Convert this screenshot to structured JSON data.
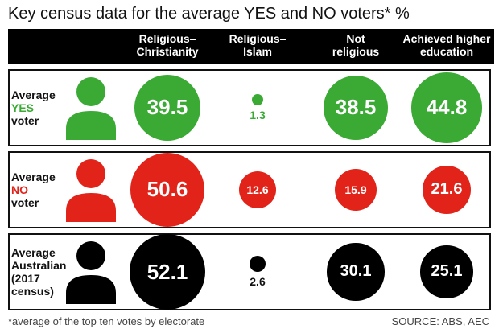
{
  "title": "Key census data for the average YES and NO voters* %",
  "footnote": "*average of the top ten votes by electorate",
  "source": "SOURCE: ABS, AEC",
  "colors": {
    "yes": "#3aaa35",
    "no": "#e2231a",
    "aus": "#000000"
  },
  "chart_data": {
    "type": "bubble-table",
    "columns": [
      "Religious–Christianity",
      "Religious–Islam",
      "Not religious",
      "Achieved higher education"
    ],
    "column_lines": [
      [
        "Religious–",
        "Christianity"
      ],
      [
        "Religious–",
        "Islam"
      ],
      [
        "Not",
        "religious"
      ],
      [
        "Achieved higher",
        "education"
      ]
    ],
    "rows": [
      {
        "lines": [
          "Average",
          "YES",
          "voter"
        ],
        "accent_index": 1,
        "color_key": "yes",
        "values": [
          39.5,
          1.3,
          38.5,
          44.8
        ]
      },
      {
        "lines": [
          "Average",
          "NO",
          "voter"
        ],
        "accent_index": 1,
        "color_key": "no",
        "values": [
          50.6,
          12.6,
          15.9,
          21.6
        ]
      },
      {
        "lines": [
          "Average",
          "Australian",
          "(2017",
          "census)"
        ],
        "accent_index": -1,
        "color_key": "aus",
        "values": [
          52.1,
          2.6,
          30.1,
          25.1
        ]
      }
    ],
    "value_labels": [
      [
        "39.5",
        "1.3",
        "38.5",
        "44.8"
      ],
      [
        "50.6",
        "12.6",
        "15.9",
        "21.6"
      ],
      [
        "52.1",
        "2.6",
        "30.1",
        "25.1"
      ]
    ]
  }
}
